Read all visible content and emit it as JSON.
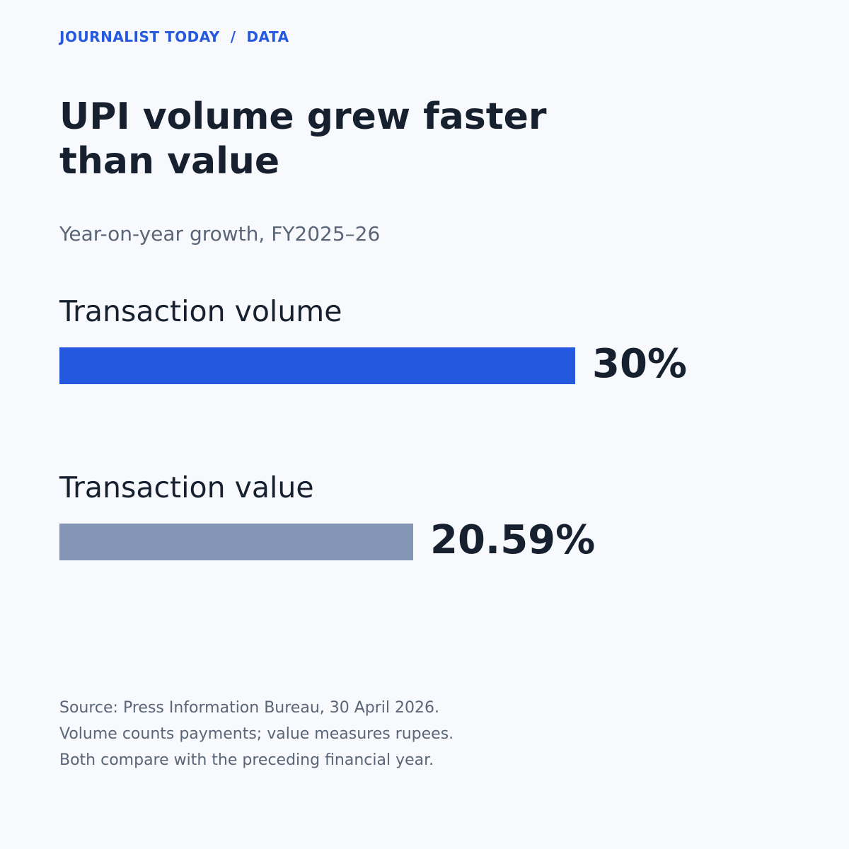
{
  "header": {
    "kicker": "JOURNALIST TODAY  /  DATA"
  },
  "colors": {
    "accent": "#2459df",
    "muted_bar": "#8595b5",
    "text": "#16202f",
    "secondary_text": "#5a6577",
    "background": "#f7f9fc"
  },
  "chart_data": {
    "type": "bar",
    "orientation": "horizontal",
    "title": "UPI volume grew faster than value",
    "subtitle": "Year-on-year growth, FY2025–26",
    "categories": [
      "Transaction volume",
      "Transaction value"
    ],
    "values": [
      30,
      20.59
    ],
    "value_labels": [
      "30%",
      "20.59%"
    ],
    "bar_colors": [
      "#2459df",
      "#8595b5"
    ],
    "xlim": [
      0,
      30
    ],
    "grid": false,
    "legend": "none"
  },
  "footnote": {
    "lines": [
      "Source: Press Information Bureau, 30 April 2026.",
      "Volume counts payments; value measures rupees.",
      "Both compare with the preceding financial year."
    ]
  }
}
